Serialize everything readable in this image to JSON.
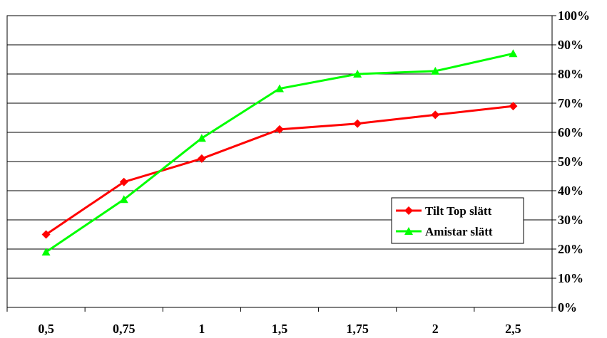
{
  "chart_data": {
    "type": "line",
    "categories": [
      "0,5",
      "0,75",
      "1",
      "1,5",
      "1,75",
      "2",
      "2,5"
    ],
    "series": [
      {
        "name": "Tilt Top slätt",
        "values": [
          25,
          43,
          51,
          61,
          63,
          66,
          69
        ],
        "color": "#ff0000",
        "marker": "diamond"
      },
      {
        "name": "Amistar slätt",
        "values": [
          19,
          37,
          58,
          75,
          80,
          81,
          87
        ],
        "color": "#00ff00",
        "marker": "triangle"
      }
    ],
    "ylim": [
      0,
      100
    ],
    "yticks": [
      "0%",
      "10%",
      "20%",
      "30%",
      "40%",
      "50%",
      "60%",
      "70%",
      "80%",
      "90%",
      "100%"
    ],
    "y_axis_side": "right",
    "grid": true,
    "legend": "right-center"
  }
}
